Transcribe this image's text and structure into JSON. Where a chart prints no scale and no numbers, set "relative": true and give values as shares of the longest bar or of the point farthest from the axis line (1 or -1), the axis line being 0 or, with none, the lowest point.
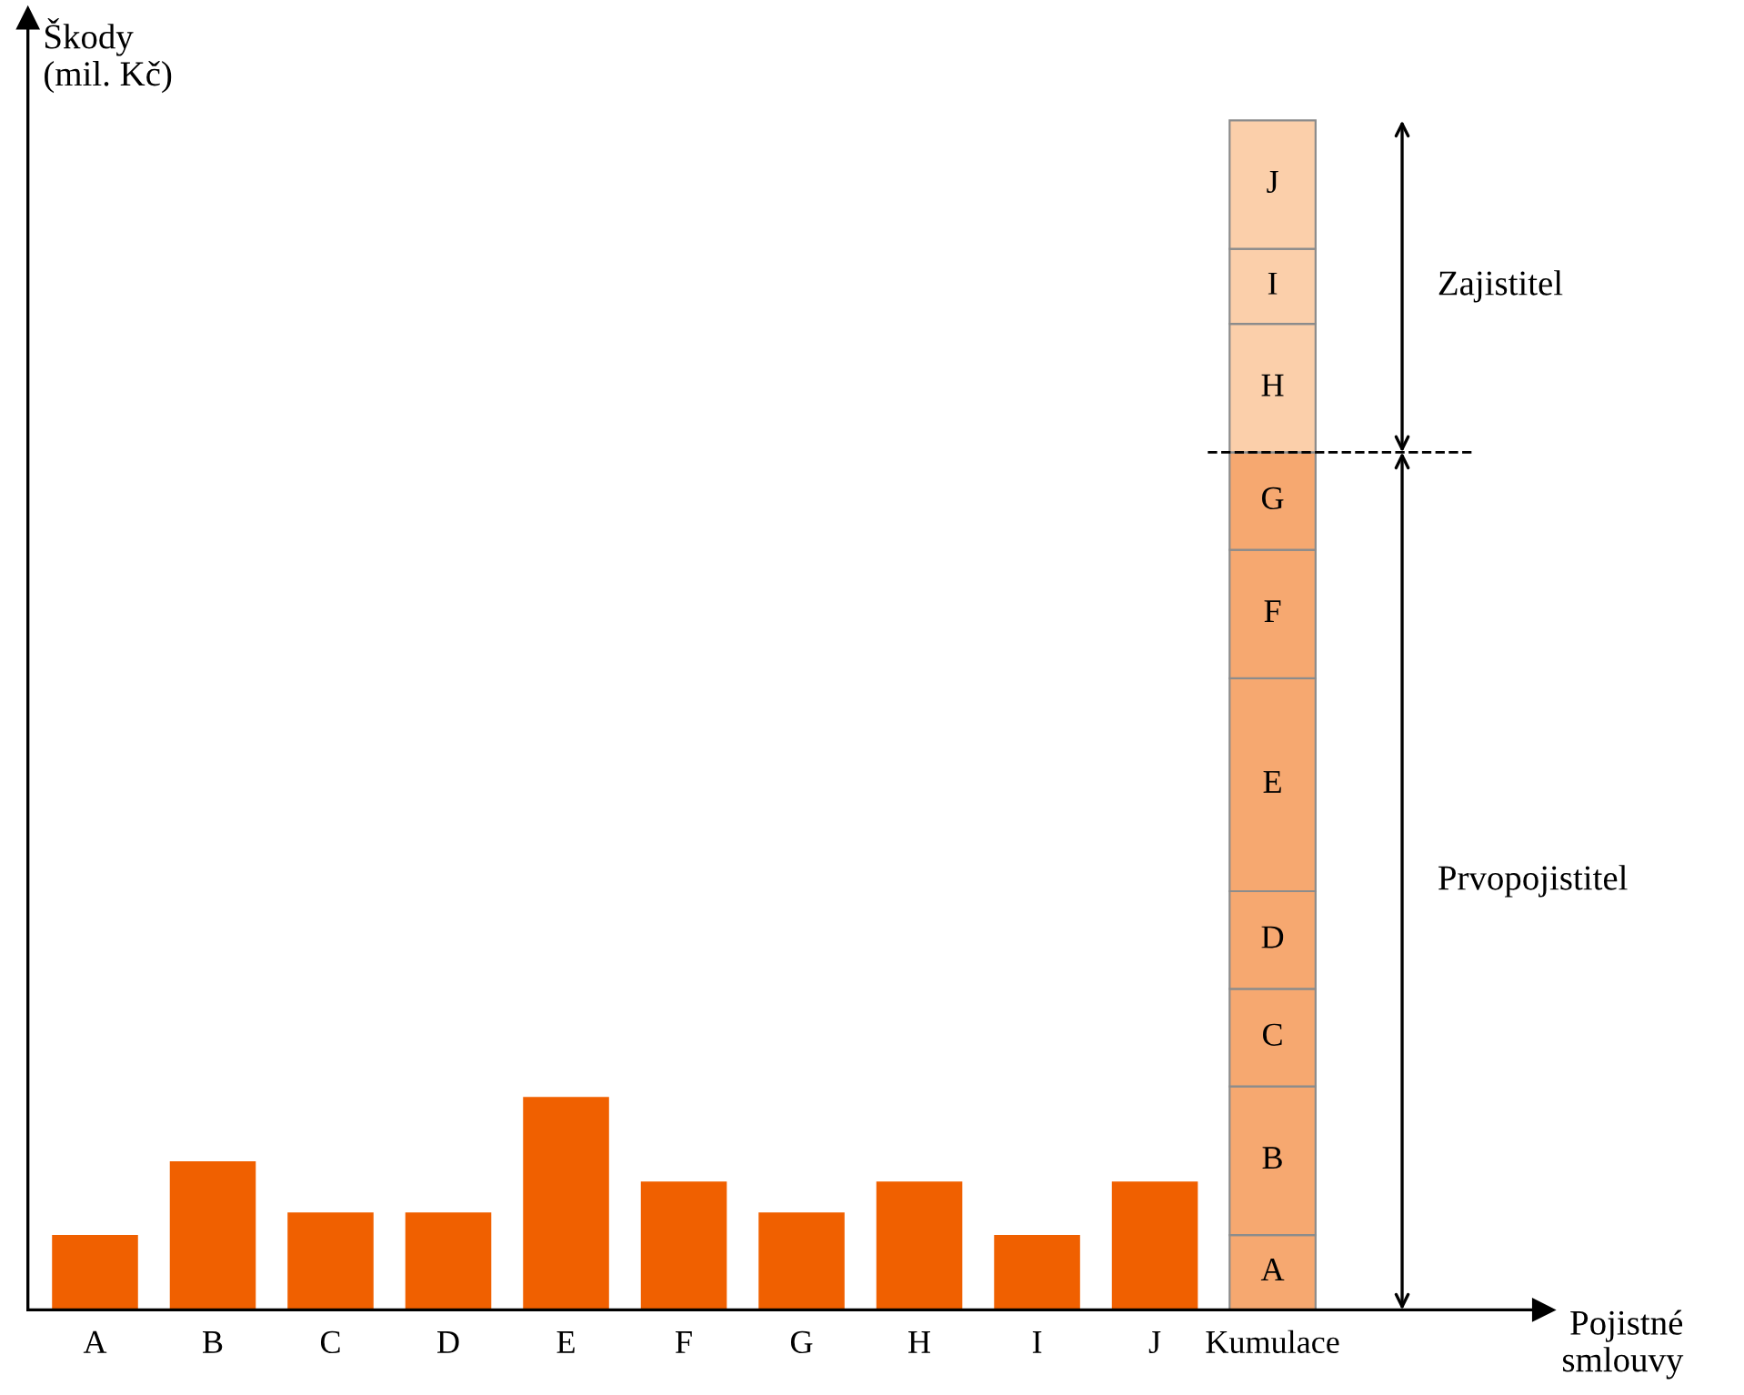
{
  "chart_data": {
    "type": "bar",
    "relative": true,
    "stacked": true,
    "ylabel": "Škody\n(mil. Kč)",
    "categories": [
      "A",
      "B",
      "C",
      "D",
      "E",
      "F",
      "G",
      "H",
      "I",
      "J",
      "Kumulace"
    ],
    "series": [
      {
        "color": "#f06000",
        "values": [
          0.063,
          0.125,
          0.082,
          0.082,
          0.179,
          0.108,
          0.082,
          0.108,
          0.063,
          0.108,
          null
        ]
      },
      {
        "name": "A",
        "color": "#f6a870",
        "values": [
          null,
          null,
          null,
          null,
          null,
          null,
          null,
          null,
          null,
          null,
          0.063
        ]
      },
      {
        "name": "B",
        "color": "#f6a870",
        "values": [
          null,
          null,
          null,
          null,
          null,
          null,
          null,
          null,
          null,
          null,
          0.125
        ]
      },
      {
        "name": "C",
        "color": "#f6a870",
        "values": [
          null,
          null,
          null,
          null,
          null,
          null,
          null,
          null,
          null,
          null,
          0.082
        ]
      },
      {
        "name": "D",
        "color": "#f6a870",
        "values": [
          null,
          null,
          null,
          null,
          null,
          null,
          null,
          null,
          null,
          null,
          0.082
        ]
      },
      {
        "name": "E",
        "color": "#f6a870",
        "values": [
          null,
          null,
          null,
          null,
          null,
          null,
          null,
          null,
          null,
          null,
          0.179
        ]
      },
      {
        "name": "F",
        "color": "#f6a870",
        "values": [
          null,
          null,
          null,
          null,
          null,
          null,
          null,
          null,
          null,
          null,
          0.108
        ]
      },
      {
        "name": "G",
        "color": "#f6a870",
        "values": [
          null,
          null,
          null,
          null,
          null,
          null,
          null,
          null,
          null,
          null,
          0.082
        ]
      },
      {
        "name": "H",
        "color": "#fbcfaa",
        "values": [
          null,
          null,
          null,
          null,
          null,
          null,
          null,
          null,
          null,
          null,
          0.108
        ]
      },
      {
        "name": "I",
        "color": "#fbcfaa",
        "values": [
          null,
          null,
          null,
          null,
          null,
          null,
          null,
          null,
          null,
          null,
          0.063
        ]
      },
      {
        "name": "J",
        "color": "#fbcfaa",
        "values": [
          null,
          null,
          null,
          null,
          null,
          null,
          null,
          null,
          null,
          null,
          0.108
        ]
      }
    ],
    "ref_lines": [
      {
        "axis": "y",
        "value": 0.721,
        "line_style": "dashed",
        "color": "#000000"
      }
    ],
    "annotations": [
      "Zajistitel",
      "Prvopojistitel",
      "Pojistné\nsmlouvy"
    ]
  }
}
